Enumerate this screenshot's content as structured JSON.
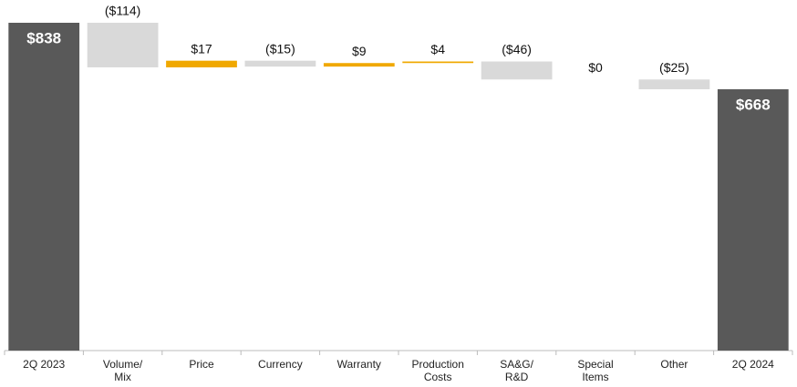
{
  "chart_data": {
    "type": "waterfall",
    "categories": [
      "2Q 2023",
      "Volume/ Mix",
      "Price",
      "Currency",
      "Warranty",
      "Production Costs",
      "SA&G/ R&D",
      "Special Items",
      "Other",
      "2Q 2024"
    ],
    "values": [
      838,
      -114,
      17,
      -15,
      9,
      4,
      -46,
      0,
      -25,
      668
    ],
    "value_labels": [
      "$838",
      "($114)",
      "$17",
      "($15)",
      "$9",
      "$4",
      "($46)",
      "$0",
      "($25)",
      "$668"
    ],
    "is_total": [
      true,
      false,
      false,
      false,
      false,
      false,
      false,
      false,
      false,
      true
    ],
    "total_color": "#595959",
    "increase_color": "#f0a800",
    "decrease_color": "#d9d9d9"
  }
}
